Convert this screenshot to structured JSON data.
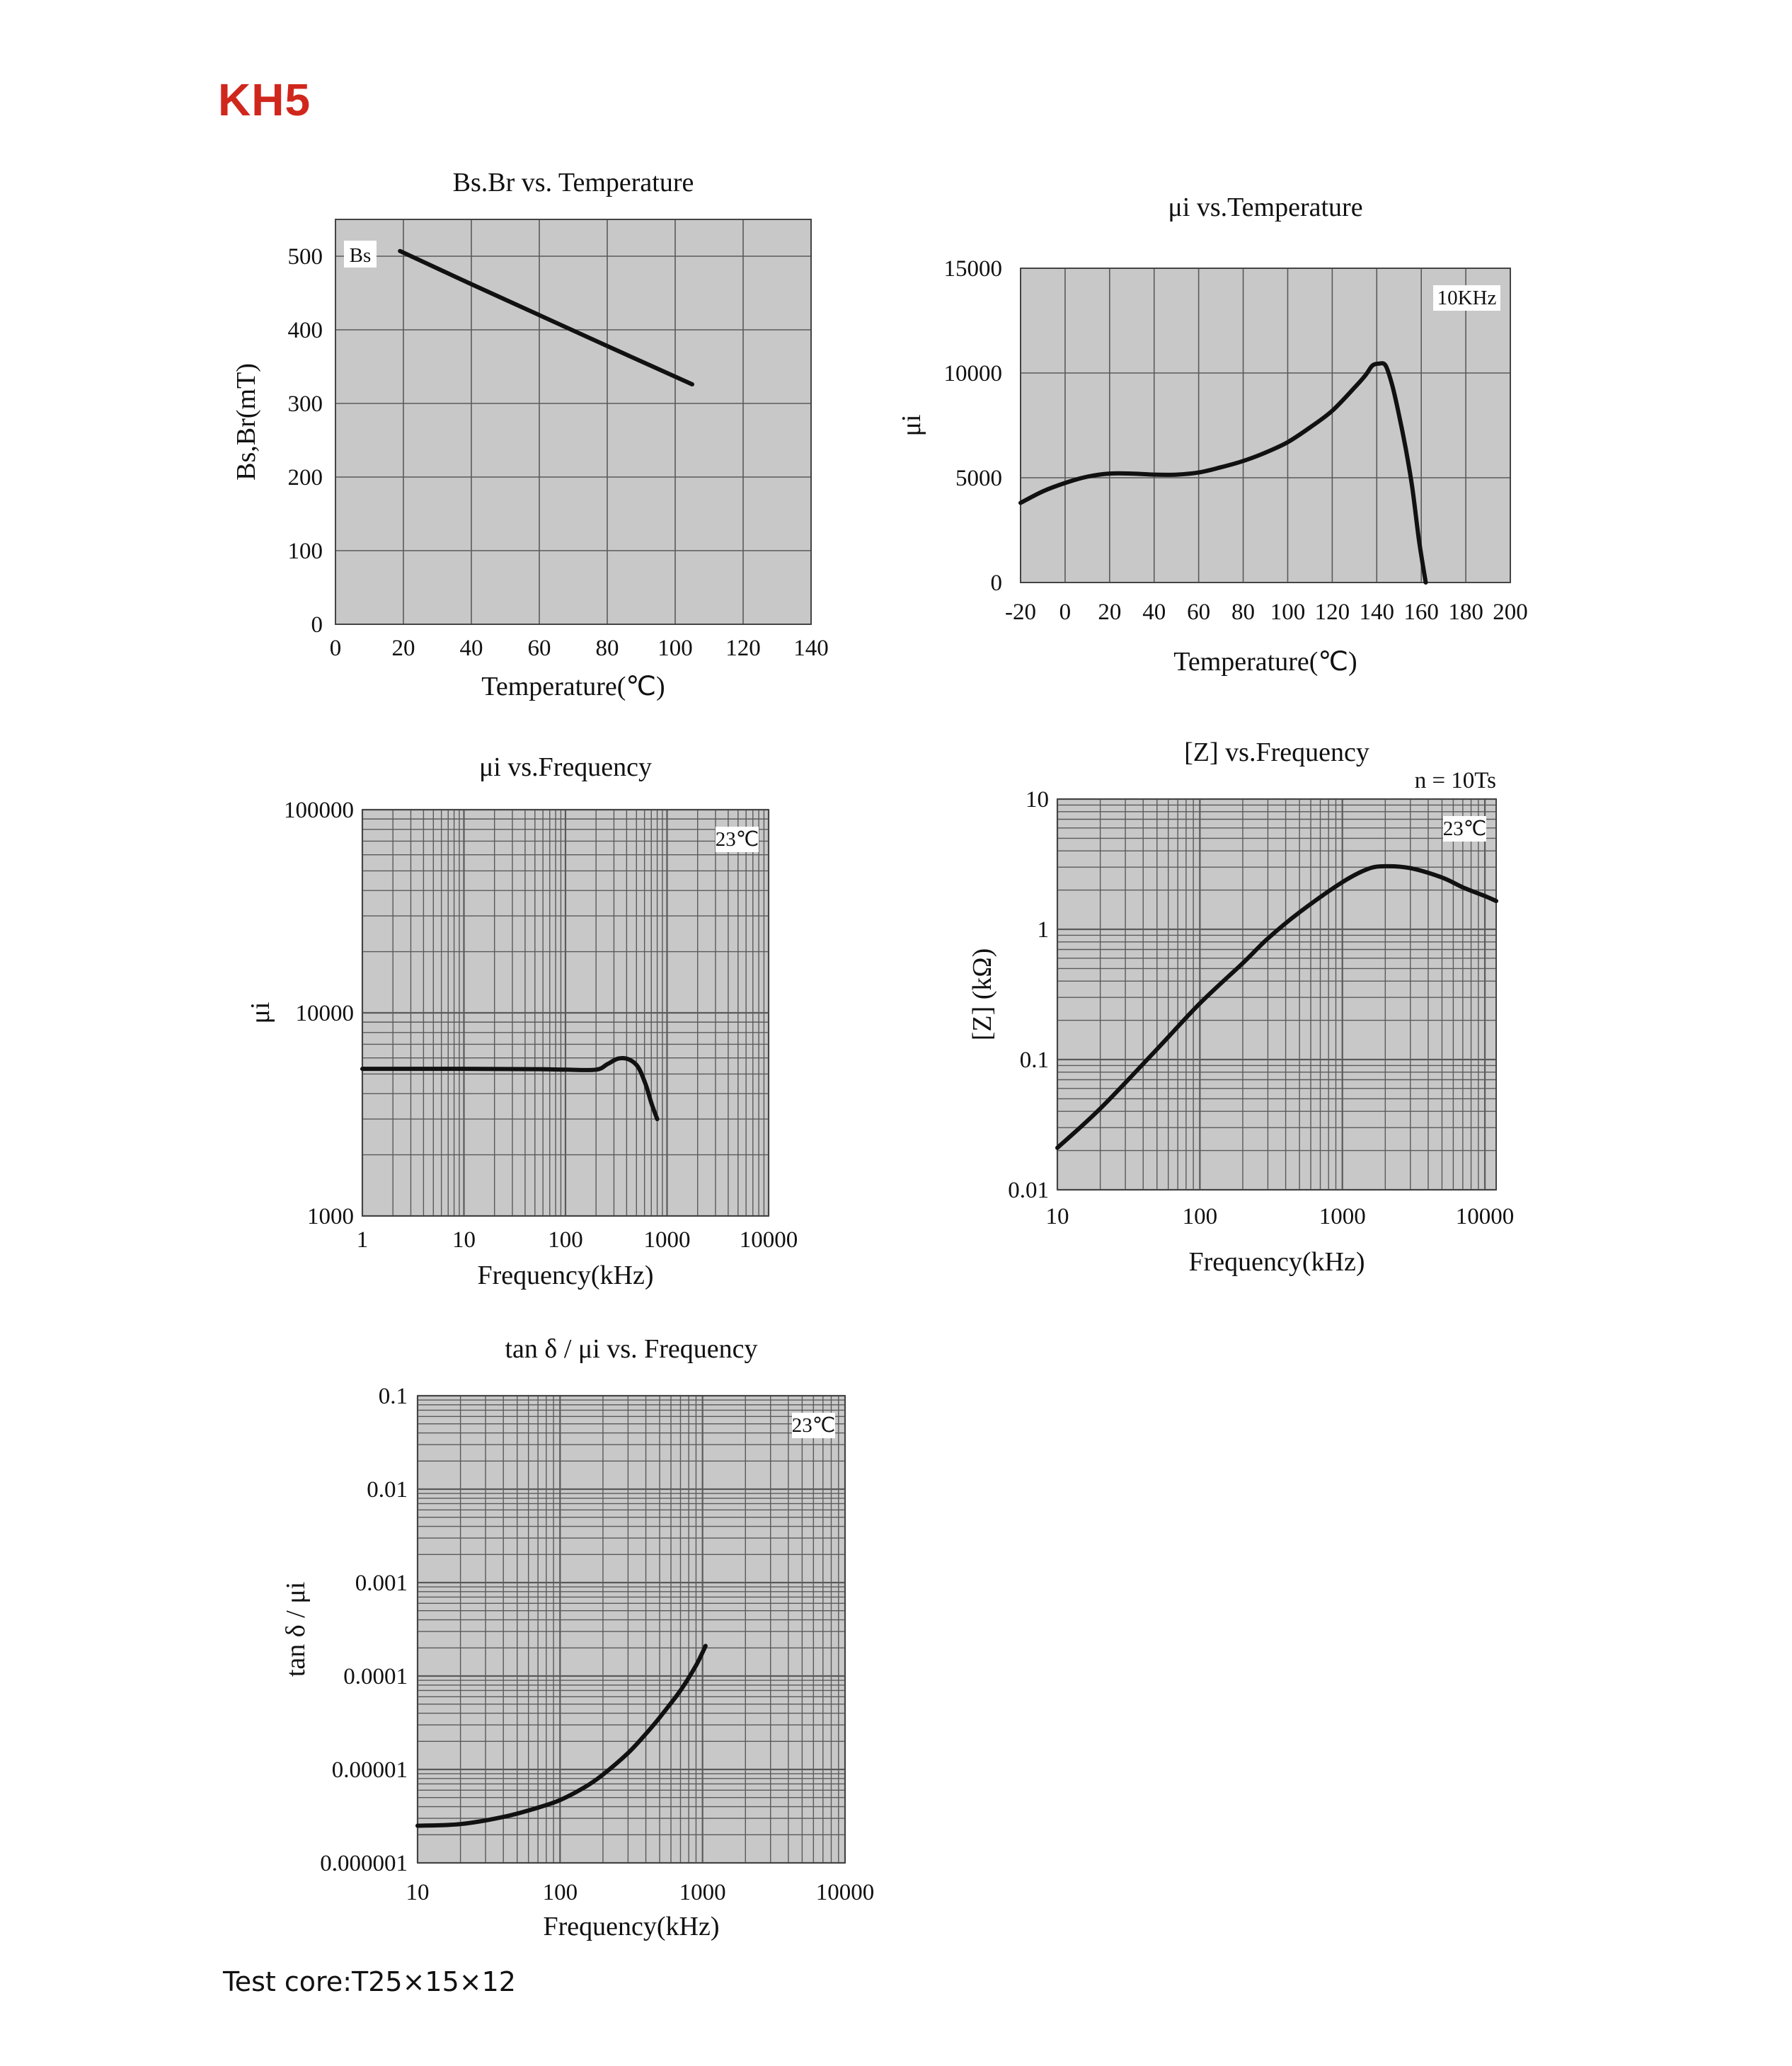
{
  "page": {
    "title": "KH5",
    "footer": "Test core:T25×15×12"
  },
  "colors": {
    "title": "#d0271d",
    "plot_bg": "#c8c8c8",
    "grid": "#5a5a5a",
    "curve": "#111111"
  },
  "chart_data": [
    {
      "id": "bs-temp",
      "type": "line",
      "title": "Bs.Br  vs. Temperature",
      "xlabel": "Temperature(℃)",
      "ylabel": "Bs,Br(mT)",
      "xlim": [
        0,
        140
      ],
      "ylim": [
        0,
        550
      ],
      "xscale": "linear",
      "yscale": "linear",
      "xticks": [
        0,
        20,
        40,
        60,
        80,
        100,
        120,
        140
      ],
      "xticklabels": [
        "0",
        "20",
        "40",
        "60",
        "80",
        "100",
        "120",
        "140"
      ],
      "yticks": [
        0,
        100,
        200,
        300,
        400,
        500
      ],
      "yticklabels": [
        "0",
        "100",
        "200",
        "300",
        "400",
        "500"
      ],
      "grid": true,
      "annotation": "",
      "series": [
        {
          "name": "Bs",
          "x": [
            19,
            40,
            60,
            80,
            105
          ],
          "y": [
            507,
            462,
            420,
            378,
            326
          ]
        }
      ]
    },
    {
      "id": "mui-temp",
      "type": "line",
      "title": "μi  vs.Temperature",
      "xlabel": "Temperature(℃)",
      "ylabel": "μi",
      "xlim": [
        -20,
        200
      ],
      "ylim": [
        0,
        15000
      ],
      "xscale": "linear",
      "yscale": "linear",
      "xticks": [
        -20,
        0,
        20,
        40,
        60,
        80,
        100,
        120,
        140,
        160,
        180,
        200
      ],
      "xticklabels": [
        "-20",
        "0",
        "20",
        "40",
        "60",
        "80",
        "100",
        "120",
        "140",
        "160",
        "180",
        "200"
      ],
      "yticks": [
        0,
        5000,
        10000,
        15000
      ],
      "yticklabels": [
        "0",
        "5000",
        "10000",
        "15000"
      ],
      "grid": true,
      "annotation": "10KHz",
      "series": [
        {
          "x": [
            -20,
            -10,
            0,
            10,
            20,
            30,
            40,
            50,
            60,
            70,
            80,
            90,
            100,
            110,
            120,
            130,
            135,
            138,
            141,
            144,
            147,
            150,
            153,
            156,
            159,
            162
          ],
          "y": [
            3800,
            4350,
            4750,
            5050,
            5200,
            5200,
            5150,
            5150,
            5250,
            5500,
            5800,
            6200,
            6700,
            7400,
            8200,
            9300,
            9900,
            10350,
            10450,
            10350,
            9400,
            8000,
            6400,
            4500,
            2000,
            0
          ]
        }
      ]
    },
    {
      "id": "mui-freq",
      "type": "line",
      "title": "μi vs.Frequency",
      "xlabel": "Frequency(kHz)",
      "ylabel": "μi",
      "xlim": [
        1,
        10000
      ],
      "ylim": [
        1000,
        100000
      ],
      "xscale": "log",
      "yscale": "log",
      "xticks": [
        1,
        10,
        100,
        1000,
        10000
      ],
      "xticklabels": [
        "1",
        "10",
        "100",
        "1000",
        "10000"
      ],
      "yticks": [
        1000,
        10000,
        100000
      ],
      "yticklabels": [
        "1000",
        "10000",
        "100000"
      ],
      "grid": true,
      "annotation": "23℃",
      "series": [
        {
          "x": [
            1,
            10,
            50,
            100,
            200,
            260,
            330,
            420,
            520,
            620,
            700,
            800
          ],
          "y": [
            5300,
            5300,
            5280,
            5250,
            5250,
            5600,
            5950,
            5900,
            5400,
            4400,
            3600,
            3000
          ]
        }
      ]
    },
    {
      "id": "z-freq",
      "type": "line",
      "title": "[Z]    vs.Frequency",
      "subtitle": "n = 10Ts",
      "xlabel": "Frequency(kHz)",
      "ylabel": "[Z]  (kΩ)",
      "xlim": [
        10,
        12000
      ],
      "ylim": [
        0.01,
        10
      ],
      "xscale": "log",
      "yscale": "log",
      "xticks": [
        10,
        100,
        1000,
        10000
      ],
      "xticklabels": [
        "10",
        "100",
        "1000",
        "10000"
      ],
      "yticks": [
        0.01,
        0.1,
        1,
        10
      ],
      "yticklabels": [
        "0.01",
        "0.1",
        "1",
        "10"
      ],
      "grid": true,
      "annotation": "23℃",
      "series": [
        {
          "x": [
            10,
            20,
            50,
            100,
            200,
            300,
            500,
            1000,
            1500,
            2000,
            3000,
            5000,
            7000,
            10000,
            12000
          ],
          "y": [
            0.021,
            0.042,
            0.12,
            0.27,
            0.55,
            0.85,
            1.35,
            2.3,
            2.9,
            3.05,
            2.95,
            2.5,
            2.1,
            1.8,
            1.65
          ]
        }
      ]
    },
    {
      "id": "tand-freq",
      "type": "line",
      "title": "tan δ / μi vs. Frequency",
      "xlabel": "Frequency(kHz)",
      "ylabel": "tan δ / μi",
      "xlim": [
        10,
        10000
      ],
      "ylim": [
        1e-06,
        0.1
      ],
      "xscale": "log",
      "yscale": "log",
      "xticks": [
        10,
        100,
        1000,
        10000
      ],
      "xticklabels": [
        "10",
        "100",
        "1000",
        "10000"
      ],
      "yticks": [
        1e-06,
        1e-05,
        0.0001,
        0.001,
        0.01,
        0.1
      ],
      "yticklabels": [
        "0.000001",
        "0.00001",
        "0.0001",
        "0.001",
        "0.01",
        "0.1"
      ],
      "grid": true,
      "annotation": "23℃",
      "series": [
        {
          "x": [
            10,
            20,
            40,
            70,
            100,
            150,
            200,
            300,
            400,
            500,
            700,
            900,
            1050
          ],
          "y": [
            2.5e-06,
            2.6e-06,
            3.1e-06,
            3.9e-06,
            4.7e-06,
            6.5e-06,
            8.8e-06,
            1.5e-05,
            2.4e-05,
            3.6e-05,
            7e-05,
            0.00013,
            0.00021
          ]
        }
      ]
    }
  ]
}
